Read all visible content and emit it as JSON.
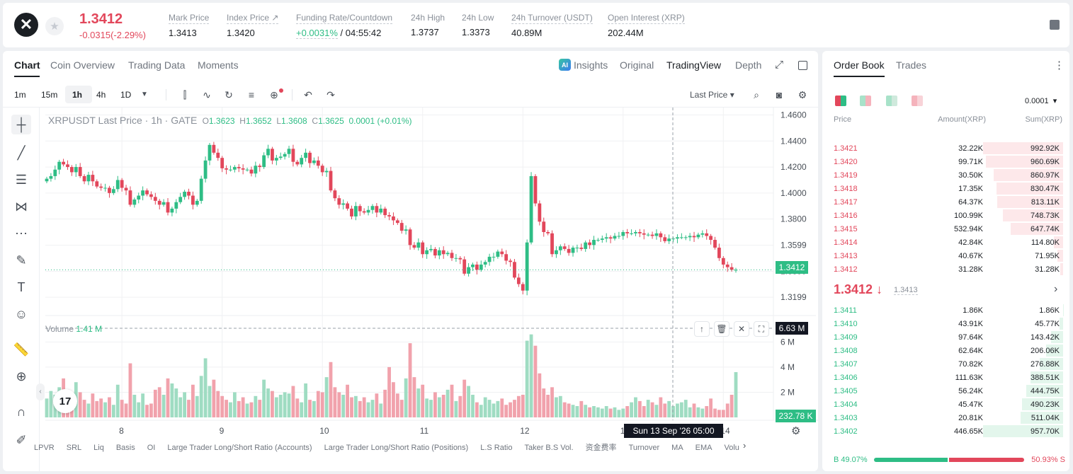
{
  "header": {
    "logo": "xrp-logo-icon",
    "last_price": "1.3412",
    "change": "-0.0315(-2.29%)",
    "stats": [
      {
        "label": "Mark Price",
        "value": "1.3413"
      },
      {
        "label": "Index Price ↗",
        "value": "1.3420"
      },
      {
        "label": "Funding Rate/Countdown",
        "value_green": "+0.0031%",
        "value": "/ 04:55:42"
      },
      {
        "label": "24h High",
        "value": "1.3737"
      },
      {
        "label": "24h Low",
        "value": "1.3373"
      },
      {
        "label": "24h Turnover (USDT)",
        "value": "40.89M"
      },
      {
        "label": "Open Interest (XRP)",
        "value": "202.44M"
      }
    ]
  },
  "chart_panel": {
    "tabs": [
      "Chart",
      "Coin Overview",
      "Trading Data",
      "Moments"
    ],
    "right_tabs": {
      "insights": "Insights",
      "ai_badge": "AI",
      "original": "Original",
      "tradingview": "TradingView",
      "depth": "Depth"
    },
    "intervals": [
      "1m",
      "15m",
      "1h",
      "4h",
      "1D"
    ],
    "price_type": "Last Price",
    "legend": {
      "title": "XRPUSDT Last Price · 1h · GATE",
      "o": "1.3623",
      "h": "1.3652",
      "l": "1.3608",
      "c": "1.3625",
      "chg": "0.0001 (+0.01%)"
    },
    "volume_label": "Volume",
    "volume_value": "1.41 M",
    "price_tag": "1.3412",
    "volume_tag": "6.63 M",
    "volume_last_tag": "232.78 K",
    "crosshair_date": "Sun 13 Sep '26   05:00",
    "tv_logo": "17",
    "bottom_items": [
      "LPVR",
      "SRL",
      "Liq",
      "Basis",
      "OI",
      "Large Trader Long/Short Ratio (Accounts)",
      "Large Trader Long/Short Ratio (Positions)",
      "L.S Ratio",
      "Taker B.S Vol.",
      "资金费率",
      "Turnover",
      "MA",
      "EMA",
      "Volu"
    ]
  },
  "chart_data": {
    "type": "candlestick",
    "title": "XRPUSDT Last Price · 1h · GATE",
    "price_axis": [
      "1.4600",
      "1.4400",
      "1.4200",
      "1.4000",
      "1.3800",
      "1.3599",
      "1.3399",
      "1.3199"
    ],
    "price_ticks": [
      1.46,
      1.44,
      1.42,
      1.4,
      1.38,
      1.3599,
      1.3399,
      1.3199
    ],
    "ylim": [
      1.308,
      1.463
    ],
    "volume_axis": [
      "6 M",
      "4 M",
      "2 M"
    ],
    "volume_ticks": [
      6,
      4,
      2
    ],
    "volume_max": 7.2,
    "x_labels": [
      "8",
      "9",
      "10",
      "11",
      "12",
      "13",
      "14"
    ],
    "x_label_hours": [
      18,
      42,
      66,
      90,
      114,
      138,
      162
    ],
    "series": [
      {
        "name": "close",
        "values": [
          1.411,
          1.413,
          1.418,
          1.424,
          1.422,
          1.42,
          1.416,
          1.42,
          1.413,
          1.409,
          1.414,
          1.409,
          1.405,
          1.404,
          1.404,
          1.4,
          1.403,
          1.41,
          1.404,
          1.402,
          1.391,
          1.395,
          1.398,
          1.402,
          1.399,
          1.397,
          1.394,
          1.391,
          1.393,
          1.385,
          1.388,
          1.393,
          1.397,
          1.401,
          1.398,
          1.391,
          1.394,
          1.411,
          1.425,
          1.437,
          1.431,
          1.427,
          1.419,
          1.418,
          1.418,
          1.42,
          1.419,
          1.418,
          1.418,
          1.415,
          1.421,
          1.42,
          1.429,
          1.434,
          1.425,
          1.427,
          1.428,
          1.43,
          1.434,
          1.424,
          1.422,
          1.427,
          1.431,
          1.423,
          1.425,
          1.421,
          1.416,
          1.417,
          1.402,
          1.396,
          1.391,
          1.392,
          1.388,
          1.382,
          1.39,
          1.386,
          1.385,
          1.387,
          1.39,
          1.385,
          1.388,
          1.383,
          1.382,
          1.379,
          1.377,
          1.371,
          1.372,
          1.36,
          1.358,
          1.362,
          1.353,
          1.356,
          1.357,
          1.352,
          1.356,
          1.353,
          1.354,
          1.35,
          1.35,
          1.349,
          1.338,
          1.343,
          1.345,
          1.341,
          1.345,
          1.347,
          1.351,
          1.351,
          1.355,
          1.353,
          1.348,
          1.347,
          1.335,
          1.33,
          1.325,
          1.362,
          1.413,
          1.392,
          1.378,
          1.37,
          1.369,
          1.353,
          1.356,
          1.359,
          1.357,
          1.354,
          1.358,
          1.358,
          1.357,
          1.362,
          1.36,
          1.364,
          1.364,
          1.365,
          1.366,
          1.365,
          1.367,
          1.367,
          1.37,
          1.369,
          1.369,
          1.37,
          1.369,
          1.368,
          1.368,
          1.367,
          1.369,
          1.366,
          1.363,
          1.365,
          1.365,
          1.366,
          1.366,
          1.366,
          1.367,
          1.366,
          1.368,
          1.369,
          1.367,
          1.364,
          1.358,
          1.35,
          1.345,
          1.343,
          1.341,
          1.341
        ]
      }
    ],
    "volume_series": [
      1.5,
      2.1,
      1.8,
      2.4,
      3.1,
      2.2,
      1.6,
      2.8,
      2.0,
      1.4,
      1.1,
      1.9,
      1.3,
      1.5,
      1.2,
      1.6,
      1.0,
      2.6,
      1.4,
      1.1,
      4.3,
      1.8,
      1.2,
      1.9,
      1.0,
      1.1,
      2.2,
      2.4,
      1.8,
      3.1,
      2.7,
      2.3,
      1.6,
      2.0,
      1.4,
      2.6,
      1.7,
      3.3,
      4.7,
      2.5,
      3.0,
      2.1,
      1.7,
      1.4,
      1.2,
      2.0,
      1.3,
      1.6,
      1.1,
      1.2,
      1.7,
      1.4,
      3.0,
      2.3,
      2.1,
      1.6,
      1.8,
      2.0,
      1.9,
      2.5,
      1.5,
      1.2,
      2.7,
      1.4,
      1.3,
      2.1,
      2.0,
      3.2,
      4.4,
      2.4,
      2.0,
      1.8,
      2.6,
      1.6,
      1.7,
      1.3,
      1.6,
      1.2,
      1.4,
      1.9,
      1.1,
      2.2,
      4.0,
      2.8,
      1.9,
      1.4,
      3.1,
      5.9,
      3.2,
      2.3,
      2.6,
      1.5,
      1.4,
      2.0,
      1.6,
      1.8,
      2.2,
      2.6,
      1.3,
      1.7,
      3.0,
      2.5,
      1.8,
      1.2,
      1.0,
      1.6,
      1.4,
      1.1,
      1.3,
      1.5,
      1.0,
      1.2,
      1.4,
      1.7,
      1.8,
      6.1,
      6.6,
      5.7,
      3.5,
      2.3,
      1.8,
      2.4,
      1.6,
      1.7,
      1.2,
      1.1,
      1.0,
      0.9,
      1.3,
      1.0,
      0.8,
      0.9,
      0.8,
      0.7,
      0.9,
      0.7,
      0.8,
      0.6,
      0.7,
      0.9,
      1.2,
      1.6,
      1.3,
      0.9,
      1.4,
      1.2,
      1.0,
      1.6,
      1.1,
      1.3,
      0.9,
      1.1,
      1.2,
      1.4,
      0.8,
      1.1,
      0.8,
      0.7,
      0.9,
      1.5,
      0.7,
      0.6,
      0.6,
      1.1,
      1.8,
      3.6,
      2.6,
      1.2,
      0.4,
      0.3
    ],
    "grid": true
  },
  "order_book": {
    "tabs": [
      "Order Book",
      "Trades"
    ],
    "precision": "0.0001",
    "columns": [
      "Price",
      "Amount(XRP)",
      "Sum(XRP)"
    ],
    "asks": [
      {
        "price": "1.3421",
        "amount": "32.22K",
        "sum": "992.92K",
        "depth": 1.0
      },
      {
        "price": "1.3420",
        "amount": "99.71K",
        "sum": "960.69K",
        "depth": 0.967
      },
      {
        "price": "1.3419",
        "amount": "30.50K",
        "sum": "860.97K",
        "depth": 0.867
      },
      {
        "price": "1.3418",
        "amount": "17.35K",
        "sum": "830.47K",
        "depth": 0.836
      },
      {
        "price": "1.3417",
        "amount": "64.37K",
        "sum": "813.11K",
        "depth": 0.819
      },
      {
        "price": "1.3416",
        "amount": "100.99K",
        "sum": "748.73K",
        "depth": 0.754
      },
      {
        "price": "1.3415",
        "amount": "532.94K",
        "sum": "647.74K",
        "depth": 0.652
      },
      {
        "price": "1.3414",
        "amount": "42.84K",
        "sum": "114.80K",
        "depth": 0.116
      },
      {
        "price": "1.3413",
        "amount": "40.67K",
        "sum": "71.95K",
        "depth": 0.072
      },
      {
        "price": "1.3412",
        "amount": "31.28K",
        "sum": "31.28K",
        "depth": 0.032
      }
    ],
    "mid_price": "1.3412",
    "mid_mark": "1.3413",
    "bids": [
      {
        "price": "1.3411",
        "amount": "1.86K",
        "sum": "1.86K",
        "depth": 0.002
      },
      {
        "price": "1.3410",
        "amount": "43.91K",
        "sum": "45.77K",
        "depth": 0.048
      },
      {
        "price": "1.3409",
        "amount": "97.64K",
        "sum": "143.42K",
        "depth": 0.15
      },
      {
        "price": "1.3408",
        "amount": "62.64K",
        "sum": "206.06K",
        "depth": 0.215
      },
      {
        "price": "1.3407",
        "amount": "70.82K",
        "sum": "276.88K",
        "depth": 0.289
      },
      {
        "price": "1.3406",
        "amount": "111.63K",
        "sum": "388.51K",
        "depth": 0.406
      },
      {
        "price": "1.3405",
        "amount": "56.24K",
        "sum": "444.75K",
        "depth": 0.464
      },
      {
        "price": "1.3404",
        "amount": "45.47K",
        "sum": "490.23K",
        "depth": 0.512
      },
      {
        "price": "1.3403",
        "amount": "20.81K",
        "sum": "511.04K",
        "depth": 0.534
      },
      {
        "price": "1.3402",
        "amount": "446.65K",
        "sum": "957.70K",
        "depth": 1.0
      }
    ],
    "buy_ratio": "B 49.07%",
    "sell_ratio": "50.93% S",
    "buy_fraction": 0.4907,
    "colors": {
      "up": "#2ebd85",
      "down": "#e2475b",
      "ask_bg": "#fde8ea",
      "bid_bg": "#e3f6ec"
    }
  }
}
